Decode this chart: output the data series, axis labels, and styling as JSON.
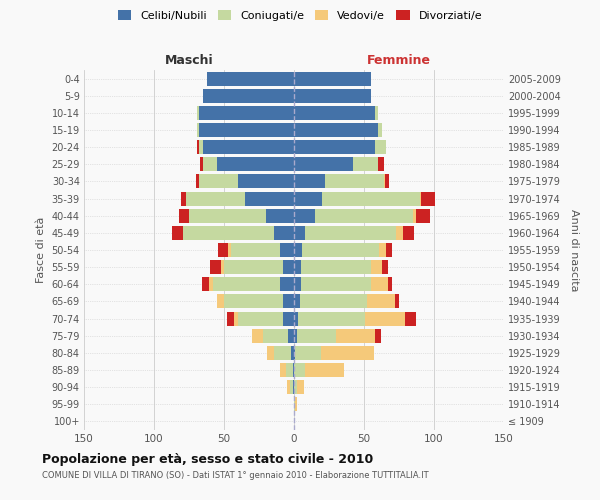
{
  "age_groups": [
    "100+",
    "95-99",
    "90-94",
    "85-89",
    "80-84",
    "75-79",
    "70-74",
    "65-69",
    "60-64",
    "55-59",
    "50-54",
    "45-49",
    "40-44",
    "35-39",
    "30-34",
    "25-29",
    "20-24",
    "15-19",
    "10-14",
    "5-9",
    "0-4"
  ],
  "birth_years": [
    "≤ 1909",
    "1910-1914",
    "1915-1919",
    "1920-1924",
    "1925-1929",
    "1930-1934",
    "1935-1939",
    "1940-1944",
    "1945-1949",
    "1950-1954",
    "1955-1959",
    "1960-1964",
    "1965-1969",
    "1970-1974",
    "1975-1979",
    "1980-1984",
    "1985-1989",
    "1990-1994",
    "1995-1999",
    "2000-2004",
    "2005-2009"
  ],
  "male": {
    "celibi": [
      0,
      0,
      1,
      1,
      2,
      4,
      8,
      8,
      10,
      8,
      10,
      14,
      20,
      35,
      40,
      55,
      65,
      68,
      68,
      65,
      62
    ],
    "coniugati": [
      0,
      0,
      2,
      5,
      12,
      18,
      32,
      42,
      48,
      42,
      35,
      65,
      55,
      42,
      28,
      10,
      3,
      1,
      1,
      0,
      0
    ],
    "vedovi": [
      0,
      0,
      2,
      4,
      5,
      8,
      3,
      5,
      3,
      2,
      2,
      0,
      0,
      0,
      0,
      0,
      0,
      0,
      0,
      0,
      0
    ],
    "divorziati": [
      0,
      0,
      0,
      0,
      0,
      0,
      5,
      0,
      5,
      8,
      7,
      8,
      7,
      4,
      2,
      2,
      1,
      0,
      0,
      0,
      0
    ]
  },
  "female": {
    "nubili": [
      0,
      0,
      0,
      0,
      1,
      2,
      3,
      4,
      5,
      5,
      6,
      8,
      15,
      20,
      22,
      42,
      58,
      60,
      58,
      55,
      55
    ],
    "coniugate": [
      0,
      1,
      2,
      8,
      18,
      28,
      48,
      48,
      50,
      50,
      55,
      65,
      70,
      70,
      42,
      18,
      8,
      3,
      2,
      0,
      0
    ],
    "vedove": [
      0,
      1,
      5,
      28,
      38,
      28,
      28,
      20,
      12,
      8,
      5,
      5,
      2,
      1,
      1,
      0,
      0,
      0,
      0,
      0,
      0
    ],
    "divorziate": [
      0,
      0,
      0,
      0,
      0,
      4,
      8,
      3,
      3,
      4,
      4,
      8,
      10,
      10,
      3,
      4,
      0,
      0,
      0,
      0,
      0
    ]
  },
  "colors": {
    "celibi": "#4472a8",
    "coniugati": "#c5d9a0",
    "vedovi": "#f5c97a",
    "divorziati": "#cc2222"
  },
  "xlim": 150,
  "title": "Popolazione per età, sesso e stato civile - 2010",
  "subtitle": "COMUNE DI VILLA DI TIRANO (SO) - Dati ISTAT 1° gennaio 2010 - Elaborazione TUTTITALIA.IT",
  "ylabel_left": "Fasce di età",
  "ylabel_right": "Anni di nascita",
  "xlabel_left": "Maschi",
  "xlabel_right": "Femmine",
  "bg_color": "#f9f9f9",
  "grid_color": "#cccccc"
}
